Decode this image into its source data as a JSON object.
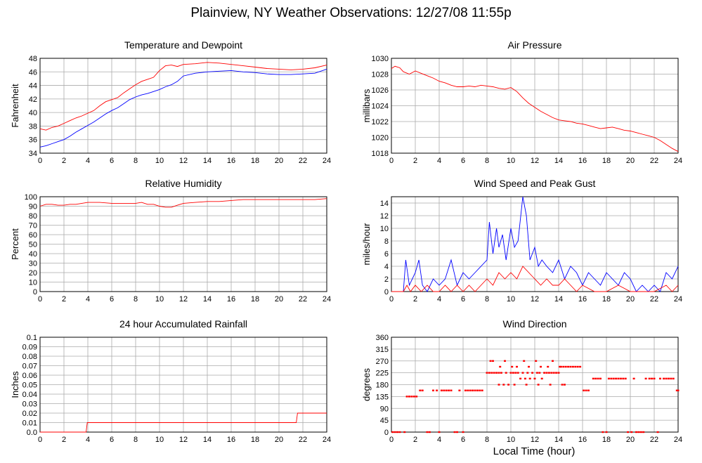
{
  "title": "Plainview, NY Weather Observations: 12/27/08 11:55p",
  "x_axis_label": "Local Time (hour)",
  "colors": {
    "red": "#ff0000",
    "blue": "#0000ff",
    "grid": "#aaaaaa"
  },
  "chart_data": [
    {
      "id": "temp",
      "type": "line",
      "title": "Temperature and Dewpoint",
      "ylabel": "Fahrenheit",
      "xlim": [
        0,
        24
      ],
      "ylim": [
        34,
        48
      ],
      "xticks": [
        0,
        2,
        4,
        6,
        8,
        10,
        12,
        14,
        16,
        18,
        20,
        22,
        24
      ],
      "yticks": [
        34,
        36,
        38,
        40,
        42,
        44,
        46,
        48
      ],
      "ytick_labels": [
        "34",
        "36",
        "38",
        "40",
        "42",
        "44",
        "46",
        "48"
      ],
      "grid": true,
      "series": [
        {
          "color": "red",
          "x": [
            0,
            0.5,
            1,
            1.5,
            2,
            2.5,
            3,
            3.5,
            4,
            4.5,
            5,
            5.5,
            6,
            6.5,
            7,
            7.5,
            8,
            8.5,
            9,
            9.5,
            10,
            10.5,
            11,
            11.5,
            12,
            13,
            14,
            15,
            16,
            17,
            18,
            19,
            20,
            21,
            22,
            23,
            24
          ],
          "y": [
            37.6,
            37.4,
            37.8,
            38.0,
            38.4,
            38.8,
            39.2,
            39.5,
            39.9,
            40.3,
            41.0,
            41.6,
            41.9,
            42.2,
            42.9,
            43.5,
            44.1,
            44.6,
            44.9,
            45.2,
            46.2,
            46.9,
            47.0,
            46.8,
            47.1,
            47.2,
            47.4,
            47.3,
            47.1,
            46.9,
            46.7,
            46.5,
            46.4,
            46.3,
            46.4,
            46.6,
            47.0
          ]
        },
        {
          "color": "blue",
          "x": [
            0,
            0.5,
            1,
            1.5,
            2,
            2.5,
            3,
            3.5,
            4,
            4.5,
            5,
            5.5,
            6,
            6.5,
            7,
            7.5,
            8,
            8.5,
            9,
            9.5,
            10,
            10.5,
            11,
            11.5,
            12,
            13,
            14,
            15,
            16,
            17,
            18,
            19,
            20,
            21,
            22,
            23,
            24
          ],
          "y": [
            34.9,
            35.1,
            35.4,
            35.7,
            36.0,
            36.5,
            37.1,
            37.6,
            38.1,
            38.6,
            39.2,
            39.8,
            40.3,
            40.7,
            41.3,
            41.9,
            42.3,
            42.6,
            42.8,
            43.1,
            43.4,
            43.8,
            44.1,
            44.6,
            45.4,
            45.8,
            46.0,
            46.1,
            46.2,
            46.0,
            45.9,
            45.7,
            45.6,
            45.6,
            45.7,
            45.8,
            46.4
          ]
        }
      ]
    },
    {
      "id": "pressure",
      "type": "line",
      "title": "Air Pressure",
      "ylabel": "millibars",
      "xlim": [
        0,
        24
      ],
      "ylim": [
        1018,
        1030
      ],
      "xticks": [
        0,
        2,
        4,
        6,
        8,
        10,
        12,
        14,
        16,
        18,
        20,
        22,
        24
      ],
      "yticks": [
        1018,
        1020,
        1022,
        1024,
        1026,
        1028,
        1030
      ],
      "ytick_labels": [
        "1018",
        "1020",
        "1022",
        "1024",
        "1026",
        "1028",
        "1030"
      ],
      "grid": true,
      "series": [
        {
          "color": "red",
          "x": [
            0,
            0.3,
            0.7,
            1,
            1.5,
            2,
            2.5,
            3,
            3.5,
            4,
            4.5,
            5,
            5.5,
            6,
            6.5,
            7,
            7.5,
            8,
            8.5,
            9,
            9.5,
            10,
            10.5,
            11,
            11.5,
            12,
            12.5,
            13,
            13.5,
            14,
            14.5,
            15,
            15.5,
            16,
            16.5,
            17,
            17.5,
            18,
            18.5,
            19,
            19.5,
            20,
            20.5,
            21,
            21.5,
            22,
            22.5,
            23,
            23.5,
            24
          ],
          "y": [
            1028.7,
            1029.0,
            1028.8,
            1028.3,
            1028.0,
            1028.4,
            1028.1,
            1027.8,
            1027.5,
            1027.1,
            1026.9,
            1026.6,
            1026.4,
            1026.4,
            1026.5,
            1026.4,
            1026.6,
            1026.5,
            1026.4,
            1026.2,
            1026.1,
            1026.3,
            1025.8,
            1025.0,
            1024.3,
            1023.8,
            1023.3,
            1022.9,
            1022.5,
            1022.2,
            1022.1,
            1022.0,
            1021.8,
            1021.7,
            1021.5,
            1021.3,
            1021.1,
            1021.2,
            1021.3,
            1021.1,
            1020.9,
            1020.8,
            1020.6,
            1020.4,
            1020.2,
            1020.0,
            1019.6,
            1019.1,
            1018.6,
            1018.2
          ]
        }
      ]
    },
    {
      "id": "humidity",
      "type": "line",
      "title": "Relative Humidity",
      "ylabel": "Percent",
      "xlim": [
        0,
        24
      ],
      "ylim": [
        0,
        100
      ],
      "xticks": [
        0,
        2,
        4,
        6,
        8,
        10,
        12,
        14,
        16,
        18,
        20,
        22,
        24
      ],
      "yticks": [
        0,
        10,
        20,
        30,
        40,
        50,
        60,
        70,
        80,
        90,
        100
      ],
      "ytick_labels": [
        "0",
        "10",
        "20",
        "30",
        "40",
        "50",
        "60",
        "70",
        "80",
        "90",
        "100"
      ],
      "grid": true,
      "series": [
        {
          "color": "red",
          "x": [
            0,
            0.5,
            1,
            1.5,
            2,
            2.5,
            3,
            3.5,
            4,
            5,
            6,
            7,
            8,
            8.5,
            9,
            9.5,
            10,
            10.5,
            11,
            11.5,
            12,
            13,
            14,
            15,
            16,
            17,
            18,
            19,
            20,
            21,
            22,
            23,
            24
          ],
          "y": [
            90,
            92,
            92,
            91,
            91,
            92,
            92,
            93,
            94,
            94,
            93,
            93,
            93,
            94,
            92,
            92,
            90,
            89,
            89,
            91,
            93,
            94,
            95,
            95,
            96,
            97,
            97,
            97,
            97,
            97,
            97,
            97,
            98
          ]
        }
      ]
    },
    {
      "id": "wind",
      "type": "line",
      "title": "Wind Speed and Peak Gust",
      "ylabel": "miles/hour",
      "xlim": [
        0,
        24
      ],
      "ylim": [
        0,
        15
      ],
      "xticks": [
        0,
        2,
        4,
        6,
        8,
        10,
        12,
        14,
        16,
        18,
        20,
        22,
        24
      ],
      "yticks": [
        0,
        2,
        4,
        6,
        8,
        10,
        12,
        14
      ],
      "ytick_labels": [
        "0",
        "2",
        "4",
        "6",
        "8",
        "10",
        "12",
        "14"
      ],
      "grid": true,
      "series": [
        {
          "color": "blue",
          "x": [
            0,
            1,
            1.2,
            1.5,
            2,
            2.3,
            2.6,
            3,
            3.5,
            4,
            4.5,
            5,
            5.5,
            6,
            6.5,
            7,
            7.5,
            8,
            8.2,
            8.5,
            8.8,
            9,
            9.3,
            9.6,
            10,
            10.3,
            10.6,
            11,
            11.3,
            11.6,
            12,
            12.3,
            12.6,
            13,
            13.5,
            14,
            14.5,
            15,
            15.5,
            16,
            16.5,
            17,
            17.5,
            18,
            18.5,
            19,
            19.5,
            20,
            20.5,
            21,
            21.5,
            22,
            22.5,
            23,
            23.5,
            24
          ],
          "y": [
            0,
            0,
            5,
            1,
            3,
            5,
            1,
            0,
            2,
            1,
            2,
            5,
            1,
            3,
            2,
            3,
            4,
            5,
            11,
            6,
            10,
            7,
            9,
            5,
            10,
            7,
            8,
            15,
            12,
            5,
            7,
            4,
            5,
            4,
            3,
            5,
            2,
            4,
            3,
            1,
            3,
            2,
            1,
            3,
            2,
            1,
            3,
            2,
            0,
            1,
            0,
            1,
            0,
            3,
            2,
            4
          ]
        },
        {
          "color": "red",
          "x": [
            0,
            1,
            1.3,
            1.6,
            2,
            2.5,
            3,
            3.5,
            4,
            4.5,
            5,
            5.5,
            6,
            6.5,
            7,
            7.5,
            8,
            8.5,
            9,
            9.5,
            10,
            10.5,
            11,
            11.5,
            12,
            12.5,
            13,
            13.5,
            14,
            14.5,
            15,
            15.5,
            16,
            17,
            18,
            19,
            20,
            21,
            22,
            23,
            23.5,
            24
          ],
          "y": [
            0,
            0,
            1,
            0,
            1,
            0,
            1,
            0,
            0,
            1,
            0,
            1,
            0,
            1,
            0,
            1,
            2,
            1,
            3,
            2,
            3,
            2,
            4,
            3,
            2,
            1,
            2,
            1,
            1,
            2,
            1,
            0,
            1,
            0,
            0,
            1,
            0,
            0,
            0,
            1,
            0,
            1
          ]
        }
      ]
    },
    {
      "id": "rain",
      "type": "line",
      "title": "24 hour Accumulated Rainfall",
      "ylabel": "Inches",
      "xlim": [
        0,
        24
      ],
      "ylim": [
        0,
        0.1
      ],
      "xticks": [
        0,
        2,
        4,
        6,
        8,
        10,
        12,
        14,
        16,
        18,
        20,
        22,
        24
      ],
      "yticks": [
        0,
        0.01,
        0.02,
        0.03,
        0.04,
        0.05,
        0.06,
        0.07,
        0.08,
        0.09,
        0.1
      ],
      "ytick_labels": [
        "0.0",
        "0.01",
        "0.02",
        "0.03",
        "0.04",
        "0.05",
        "0.06",
        "0.07",
        "0.08",
        "0.09",
        "0.1"
      ],
      "grid": true,
      "series": [
        {
          "color": "red",
          "x": [
            0,
            3.85,
            3.95,
            21.45,
            21.55,
            24
          ],
          "y": [
            0,
            0,
            0.01,
            0.01,
            0.02,
            0.02
          ]
        }
      ]
    },
    {
      "id": "direction",
      "type": "scatter",
      "title": "Wind Direction",
      "ylabel": "degrees",
      "xlim": [
        0,
        24
      ],
      "ylim": [
        0,
        360
      ],
      "xticks": [
        0,
        2,
        4,
        6,
        8,
        10,
        12,
        14,
        16,
        18,
        20,
        22,
        24
      ],
      "yticks": [
        0,
        45,
        90,
        135,
        180,
        225,
        270,
        315,
        360
      ],
      "ytick_labels": [
        "0",
        "45",
        "90",
        "135",
        "180",
        "225",
        "270",
        "315",
        "360"
      ],
      "grid": true,
      "series": [
        {
          "color": "red",
          "x": [
            0.1,
            0.3,
            0.5,
            0.7,
            1.1,
            1.3,
            1.5,
            1.7,
            1.9,
            2.1,
            2.4,
            2.6,
            3.0,
            3.2,
            3.5,
            3.8,
            4.0,
            4.2,
            4.4,
            4.6,
            4.8,
            5.0,
            5.3,
            5.5,
            5.7,
            6.0,
            6.2,
            6.4,
            6.6,
            6.8,
            7.0,
            7.2,
            7.4,
            7.6,
            8.0,
            8.2,
            8.4,
            8.6,
            8.8,
            9.0,
            9.2,
            9.4,
            9.6,
            9.8,
            10.0,
            10.2,
            10.4,
            10.6,
            10.8,
            11.0,
            11.2,
            11.4,
            11.6,
            11.8,
            12.0,
            12.2,
            12.4,
            12.6,
            12.8,
            13.0,
            13.2,
            13.4,
            13.6,
            13.8,
            14.0,
            14.2,
            14.4,
            14.6,
            14.8,
            15.0,
            15.2,
            15.4,
            15.6,
            15.8,
            16.1,
            16.3,
            16.5,
            16.9,
            17.1,
            17.3,
            17.5,
            17.7,
            18.0,
            18.2,
            18.4,
            18.6,
            18.8,
            19.0,
            19.2,
            19.4,
            19.6,
            19.8,
            20.1,
            20.3,
            20.5,
            20.7,
            20.9,
            21.1,
            21.3,
            21.6,
            21.8,
            22.0,
            22.3,
            22.5,
            22.8,
            23.0,
            23.2,
            23.4,
            23.6,
            23.9,
            24.0,
            8.3,
            8.5,
            9.1,
            9.5,
            10.1,
            10.5,
            11.1,
            11.5,
            12.1,
            12.5,
            13.1,
            13.5,
            14.1,
            9.0,
            10.3,
            11.3,
            12.3,
            13.3,
            14.3,
            14.5
          ],
          "y": [
            0,
            0,
            0,
            0,
            0,
            135,
            135,
            135,
            135,
            135,
            158,
            158,
            0,
            0,
            158,
            158,
            0,
            158,
            158,
            158,
            158,
            158,
            0,
            0,
            158,
            0,
            158,
            158,
            158,
            158,
            158,
            158,
            158,
            158,
            225,
            225,
            225,
            225,
            225,
            225,
            225,
            180,
            225,
            180,
            225,
            225,
            225,
            225,
            203,
            225,
            203,
            225,
            203,
            225,
            203,
            225,
            225,
            203,
            225,
            225,
            225,
            225,
            225,
            225,
            225,
            248,
            248,
            248,
            248,
            248,
            248,
            248,
            248,
            248,
            158,
            158,
            158,
            203,
            203,
            203,
            203,
            0,
            0,
            203,
            203,
            203,
            203,
            203,
            203,
            203,
            203,
            0,
            0,
            203,
            0,
            0,
            0,
            0,
            203,
            203,
            203,
            203,
            0,
            203,
            203,
            203,
            203,
            203,
            203,
            158,
            158,
            270,
            270,
            248,
            270,
            248,
            248,
            270,
            248,
            270,
            248,
            248,
            270,
            248,
            180,
            180,
            180,
            180,
            180,
            180,
            180
          ]
        }
      ]
    }
  ]
}
